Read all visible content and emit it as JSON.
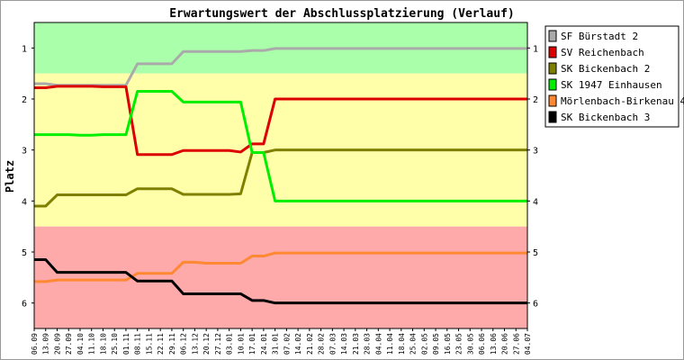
{
  "chart_data": {
    "type": "line",
    "title": "Erwartungswert der Abschlussplatzierung (Verlauf)",
    "ylabel": "Platz",
    "xlabel": "",
    "ylim": [
      0.5,
      6.5
    ],
    "y_reversed": true,
    "y_ticks": [
      "1",
      "2",
      "3",
      "4",
      "5",
      "6"
    ],
    "grid": false,
    "legend_position": "right",
    "categories": [
      "06.09",
      "13.09",
      "20.09",
      "27.09",
      "04.10",
      "11.10",
      "18.10",
      "25.10",
      "01.11",
      "08.11",
      "15.11",
      "22.11",
      "29.11",
      "06.12",
      "13.12",
      "20.12",
      "27.12",
      "03.01",
      "10.01",
      "17.01",
      "24.01",
      "31.01",
      "07.02",
      "14.02",
      "21.02",
      "28.02",
      "07.03",
      "14.03",
      "21.03",
      "28.03",
      "04.04",
      "11.04",
      "18.04",
      "25.04",
      "02.05",
      "09.05",
      "16.05",
      "23.05",
      "30.05",
      "06.06",
      "13.06",
      "20.06",
      "27.06",
      "04.07"
    ],
    "bands": [
      {
        "from": 0.5,
        "to": 1.5,
        "color": "#aaffaa"
      },
      {
        "from": 1.5,
        "to": 4.5,
        "color": "#ffffaa"
      },
      {
        "from": 4.5,
        "to": 6.5,
        "color": "#ffaaaa"
      }
    ],
    "series": [
      {
        "name": "SF Bürstadt 2",
        "color": "#aaaaaa",
        "values": [
          1.7,
          1.7,
          1.73,
          1.73,
          1.73,
          1.73,
          1.73,
          1.73,
          1.73,
          1.31,
          1.31,
          1.31,
          1.31,
          1.07,
          1.07,
          1.07,
          1.07,
          1.07,
          1.07,
          1.05,
          1.05,
          1.01,
          1.01,
          1.01,
          1.01,
          1.01,
          1.01,
          1.01,
          1.01,
          1.01,
          1.01,
          1.01,
          1.01,
          1.01,
          1.01,
          1.01,
          1.01,
          1.01,
          1.01,
          1.01,
          1.01,
          1.01,
          1.01,
          1.01
        ]
      },
      {
        "name": "SV Reichenbach",
        "color": "#dd0000",
        "values": [
          1.78,
          1.78,
          1.75,
          1.75,
          1.75,
          1.75,
          1.76,
          1.76,
          1.76,
          3.09,
          3.09,
          3.09,
          3.09,
          3.01,
          3.01,
          3.01,
          3.01,
          3.01,
          3.04,
          2.88,
          2.88,
          2.0,
          2.0,
          2.0,
          2.0,
          2.0,
          2.0,
          2.0,
          2.0,
          2.0,
          2.0,
          2.0,
          2.0,
          2.0,
          2.0,
          2.0,
          2.0,
          2.0,
          2.0,
          2.0,
          2.0,
          2.0,
          2.0,
          2.0
        ]
      },
      {
        "name": "SK Bickenbach 2",
        "color": "#808000",
        "values": [
          4.1,
          4.1,
          3.88,
          3.88,
          3.88,
          3.88,
          3.88,
          3.88,
          3.88,
          3.76,
          3.76,
          3.76,
          3.76,
          3.87,
          3.87,
          3.87,
          3.87,
          3.87,
          3.86,
          3.05,
          3.05,
          3.0,
          3.0,
          3.0,
          3.0,
          3.0,
          3.0,
          3.0,
          3.0,
          3.0,
          3.0,
          3.0,
          3.0,
          3.0,
          3.0,
          3.0,
          3.0,
          3.0,
          3.0,
          3.0,
          3.0,
          3.0,
          3.0,
          3.0
        ]
      },
      {
        "name": "SK 1947 Einhausen",
        "color": "#00ee00",
        "values": [
          2.7,
          2.7,
          2.7,
          2.7,
          2.71,
          2.71,
          2.7,
          2.7,
          2.7,
          1.85,
          1.85,
          1.85,
          1.85,
          2.06,
          2.06,
          2.06,
          2.06,
          2.06,
          2.06,
          3.05,
          3.05,
          4.0,
          4.0,
          4.0,
          4.0,
          4.0,
          4.0,
          4.0,
          4.0,
          4.0,
          4.0,
          4.0,
          4.0,
          4.0,
          4.0,
          4.0,
          4.0,
          4.0,
          4.0,
          4.0,
          4.0,
          4.0,
          4.0,
          4.0
        ]
      },
      {
        "name": "Mörlenbach-Birkenau 4",
        "color": "#ff8833",
        "values": [
          5.58,
          5.58,
          5.55,
          5.55,
          5.55,
          5.55,
          5.55,
          5.55,
          5.55,
          5.42,
          5.42,
          5.42,
          5.42,
          5.2,
          5.2,
          5.22,
          5.22,
          5.22,
          5.22,
          5.08,
          5.08,
          5.02,
          5.02,
          5.02,
          5.02,
          5.02,
          5.02,
          5.02,
          5.02,
          5.02,
          5.02,
          5.02,
          5.02,
          5.02,
          5.02,
          5.02,
          5.02,
          5.02,
          5.02,
          5.02,
          5.02,
          5.02,
          5.02,
          5.02
        ]
      },
      {
        "name": "SK Bickenbach 3",
        "color": "#000000",
        "values": [
          5.15,
          5.15,
          5.4,
          5.4,
          5.4,
          5.4,
          5.4,
          5.4,
          5.4,
          5.57,
          5.57,
          5.57,
          5.57,
          5.82,
          5.82,
          5.82,
          5.82,
          5.82,
          5.82,
          5.95,
          5.95,
          6.0,
          6.0,
          6.0,
          6.0,
          6.0,
          6.0,
          6.0,
          6.0,
          6.0,
          6.0,
          6.0,
          6.0,
          6.0,
          6.0,
          6.0,
          6.0,
          6.0,
          6.0,
          6.0,
          6.0,
          6.0,
          6.0,
          6.0
        ]
      }
    ]
  }
}
